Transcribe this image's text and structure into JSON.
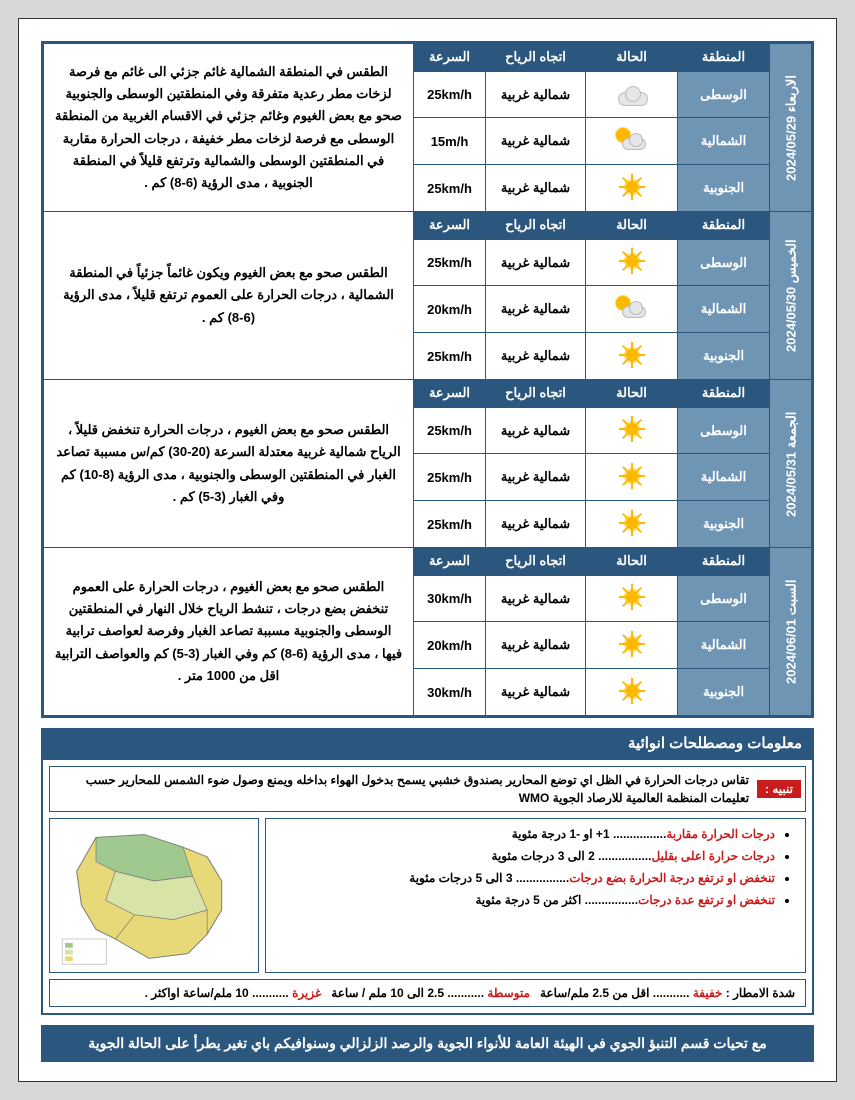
{
  "headers": {
    "region": "المنطقة",
    "condition": "الحالة",
    "wind": "اتجاه الرياح",
    "speed": "السرعة"
  },
  "days": [
    {
      "date_label": "الاربعاء 2024/05/29",
      "rows": [
        {
          "region": "الوسطى",
          "icon": "cloud",
          "wind": "شمالية غربية",
          "speed": "25km/h"
        },
        {
          "region": "الشمالية",
          "icon": "partly",
          "wind": "شمالية غربية",
          "speed": "15m/h"
        },
        {
          "region": "الجنوبية",
          "icon": "sun",
          "wind": "شمالية غربية",
          "speed": "25km/h"
        }
      ],
      "desc": "الطقس في المنطقة الشمالية غائم جزئي الى غائم مع فرصة لزخات مطر رعدية متفرقة وفي المنطقتين الوسطى والجنوبية صحو مع بعض الغيوم وغائم جزئي في الاقسام الغربية من المنطقة الوسطى مع فرصة لزخات مطر خفيفة ، درجات الحرارة مقاربة في المنطقتين الوسطى والشمالية وترتفع قليلاً في المنطقة الجنوبية ، مدى الرؤية (6-8) كم ."
    },
    {
      "date_label": "الخميس 2024/05/30",
      "rows": [
        {
          "region": "الوسطى",
          "icon": "sun",
          "wind": "شمالية غربية",
          "speed": "25km/h"
        },
        {
          "region": "الشمالية",
          "icon": "partly",
          "wind": "شمالية غربية",
          "speed": "20km/h"
        },
        {
          "region": "الجنوبية",
          "icon": "sun",
          "wind": "شمالية غربية",
          "speed": "25km/h"
        }
      ],
      "desc": "الطقس صحو مع بعض الغيوم ويكون غائماً جزئياً في المنطقة الشمالية ، درجات الحرارة على العموم ترتفع قليلاً ، مدى الرؤية (6-8) كم ."
    },
    {
      "date_label": "الجمعة 2024/05/31",
      "rows": [
        {
          "region": "الوسطى",
          "icon": "sun",
          "wind": "شمالية غربية",
          "speed": "25km/h"
        },
        {
          "region": "الشمالية",
          "icon": "sun",
          "wind": "شمالية غربية",
          "speed": "25km/h"
        },
        {
          "region": "الجنوبية",
          "icon": "sun",
          "wind": "شمالية غربية",
          "speed": "25km/h"
        }
      ],
      "desc": "الطقس صحو مع بعض الغيوم ، درجات الحرارة تنخفض قليلاً ، الرياح شمالية غربية معتدلة السرعة (20-30) كم/س مسببة تصاعد الغبار في المنطقتين الوسطى والجنوبية ، مدى الرؤية (8-10) كم وفي الغبار (3-5) كم ."
    },
    {
      "date_label": "السبت 2024/06/01",
      "rows": [
        {
          "region": "الوسطى",
          "icon": "sun",
          "wind": "شمالية غربية",
          "speed": "30km/h"
        },
        {
          "region": "الشمالية",
          "icon": "sun",
          "wind": "شمالية غربية",
          "speed": "20km/h"
        },
        {
          "region": "الجنوبية",
          "icon": "sun",
          "wind": "شمالية غربية",
          "speed": "30km/h"
        }
      ],
      "desc": "الطقس صحو مع بعض الغيوم ، درجات الحرارة على العموم تنخفض بضع درجات ، تنشط الرياح خلال النهار في المنطقتين الوسطى والجنوبية مسببة تصاعد الغبار وفرصة لعواصف ترابية فيها ، مدى الرؤية (6-8) كم وفي الغبار (3-5) كم والعواصف الترابية اقل من 1000 متر ."
    }
  ],
  "info_title": "معلومات ومصطلحات انوائية",
  "note": {
    "badge": "تنبيه :",
    "text": "تقاس درجات الحرارة في الظل اي توضع المحارير بصندوق خشبي يسمح بدخول الهواء بداخله ويمنع وصول ضوء الشمس للمحارير حسب تعليمات المنظمة العالمية للارصاد الجوية WMO"
  },
  "terms": [
    {
      "key": "درجات الحرارة مقاربة",
      "val": "1+ او -1 درجة مئوية"
    },
    {
      "key": "درجات حرارة اعلى بقليل",
      "val": "2 الى 3 درجات مئوية"
    },
    {
      "key": "تنخفض او ترتفع درجة الحرارة بضع درجات",
      "val": "3 الى 5 درجات مئوية"
    },
    {
      "key": "تنخفض او ترتفع عدة درجات",
      "val": "اكثر من 5 درجة مئوية"
    }
  ],
  "rain": {
    "label": "شدة الامطار :",
    "items": [
      {
        "key": "خفيفة",
        "val": "اقل من 2.5 ملم/ساعة"
      },
      {
        "key": "متوسطة",
        "val": "2.5 الى 10 ملم / ساعة"
      },
      {
        "key": "غزيرة",
        "val": "10 ملم/ساعة اواكثر ."
      }
    ]
  },
  "footer": "مع تحيات قسم التنبؤ الجوي في الهيئة العامة للأنواء الجوية والرصد الزلزالي وسنوافيكم باي تغير يطرأ على الحالة الجوية",
  "colors": {
    "primary": "#2b577e",
    "secondary": "#6f95b5",
    "alert": "#c81b1b",
    "sun": "#ffb800",
    "background": "#d8d8d8"
  }
}
